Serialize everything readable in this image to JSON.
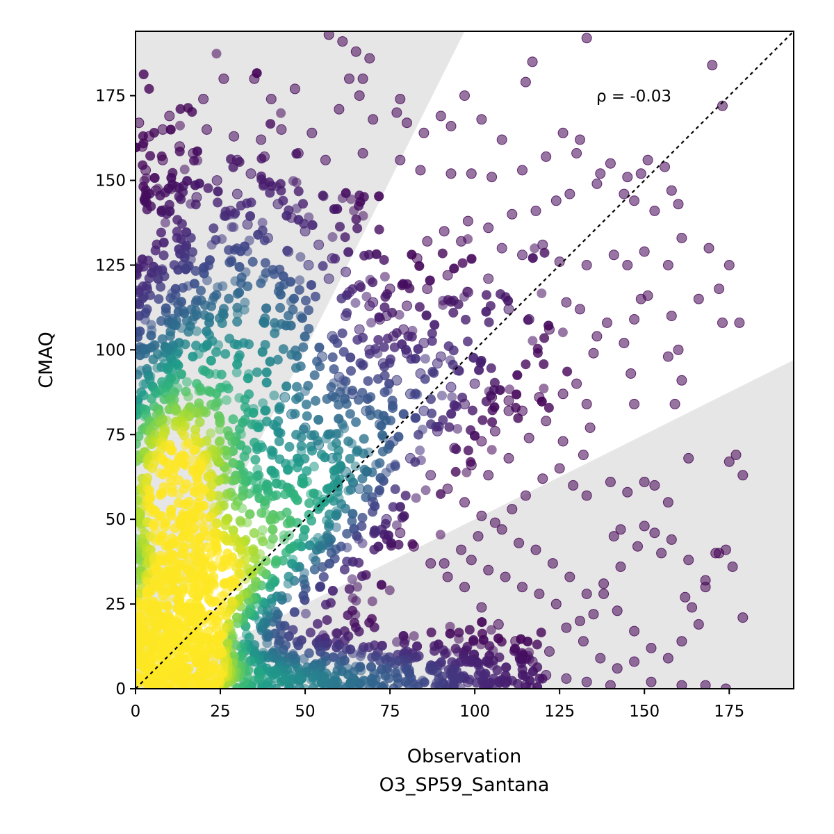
{
  "chart_data": {
    "type": "scatter",
    "title": "",
    "xlabel": "Observation",
    "xlabel_sub": "O3_SP59_Santana",
    "ylabel": "CMAQ",
    "xlim": [
      0,
      194
    ],
    "ylim": [
      0,
      194
    ],
    "xticks": [
      0,
      25,
      50,
      75,
      100,
      125,
      150,
      175
    ],
    "yticks": [
      0,
      25,
      50,
      75,
      100,
      125,
      150,
      175
    ],
    "annotation": "ρ = -0.03",
    "reference_line": "1:1 dotted diagonal",
    "shaded_regions": [
      {
        "name": "model-overestimate-zone",
        "boundary": "y = 2x",
        "color": "#e6e6e6"
      },
      {
        "name": "model-underestimate-zone",
        "boundary": "y = 0.5x",
        "color": "#e6e6e6"
      }
    ],
    "colormap": "viridis (point density, low = #440154, high = #fde725)",
    "marker_alpha": 0.55,
    "density_peak": {
      "x": 10,
      "y": 55
    },
    "grid": false,
    "series": [
      {
        "values_note": "individual sparse outlier points (x, y)",
        "points": [
          [
            57,
            193
          ],
          [
            61,
            191
          ],
          [
            65,
            188
          ],
          [
            69,
            186
          ],
          [
            97,
            175
          ],
          [
            117,
            185
          ],
          [
            115,
            179
          ],
          [
            133,
            192
          ],
          [
            170,
            184
          ],
          [
            173,
            172
          ],
          [
            63,
            180
          ],
          [
            67,
            180
          ],
          [
            26,
            180
          ],
          [
            35,
            180
          ],
          [
            20,
            174
          ],
          [
            40,
            174
          ],
          [
            47,
            177
          ],
          [
            66,
            175
          ],
          [
            78,
            174
          ],
          [
            1,
            167
          ],
          [
            10,
            169
          ],
          [
            4,
            163
          ],
          [
            8,
            165
          ],
          [
            13,
            160
          ],
          [
            21,
            165
          ],
          [
            29,
            163
          ],
          [
            37,
            162
          ],
          [
            43,
            165
          ],
          [
            52,
            164
          ],
          [
            60,
            171
          ],
          [
            70,
            168
          ],
          [
            77,
            170
          ],
          [
            80,
            167
          ],
          [
            85,
            164
          ],
          [
            90,
            169
          ],
          [
            93,
            166
          ],
          [
            102,
            168
          ],
          [
            108,
            162
          ],
          [
            126,
            164
          ],
          [
            131,
            162
          ],
          [
            130,
            158
          ],
          [
            121,
            157
          ],
          [
            114,
            153
          ],
          [
            105,
            151
          ],
          [
            99,
            152
          ],
          [
            93,
            152
          ],
          [
            84,
            153
          ],
          [
            78,
            156
          ],
          [
            67,
            158
          ],
          [
            56,
            156
          ],
          [
            48,
            158
          ],
          [
            38,
            157
          ],
          [
            30,
            156
          ],
          [
            17,
            158
          ],
          [
            8,
            156
          ],
          [
            3,
            153
          ],
          [
            2,
            160
          ],
          [
            140,
            155
          ],
          [
            137,
            152
          ],
          [
            145,
            151
          ],
          [
            151,
            156
          ],
          [
            149,
            152
          ],
          [
            156,
            154
          ],
          [
            158,
            147
          ],
          [
            160,
            143
          ],
          [
            153,
            141
          ],
          [
            147,
            144
          ],
          [
            144,
            146
          ],
          [
            136,
            149
          ],
          [
            128,
            146
          ],
          [
            124,
            144
          ],
          [
            118,
            141
          ],
          [
            111,
            140
          ],
          [
            104,
            136
          ],
          [
            98,
            138
          ],
          [
            91,
            135
          ],
          [
            86,
            132
          ],
          [
            83,
            127
          ],
          [
            96,
            132
          ],
          [
            108,
            130
          ],
          [
            114,
            128
          ],
          [
            120,
            131
          ],
          [
            125,
            126
          ],
          [
            133,
            125
          ],
          [
            141,
            128
          ],
          [
            145,
            125
          ],
          [
            150,
            129
          ],
          [
            157,
            125
          ],
          [
            161,
            133
          ],
          [
            169,
            130
          ],
          [
            151,
            116
          ],
          [
            158,
            110
          ],
          [
            166,
            115
          ],
          [
            172,
            118
          ],
          [
            175,
            125
          ],
          [
            178,
            108
          ],
          [
            173,
            108
          ],
          [
            157,
            98
          ],
          [
            160,
            100
          ],
          [
            161,
            91
          ],
          [
            163,
            68
          ],
          [
            159,
            84
          ],
          [
            146,
            93
          ],
          [
            147,
            84
          ],
          [
            139,
            108
          ],
          [
            144,
            102
          ],
          [
            147,
            109
          ],
          [
            149,
            115
          ],
          [
            136,
            104
          ],
          [
            131,
            112
          ],
          [
            135,
            99
          ],
          [
            130,
            90
          ],
          [
            126,
            87
          ],
          [
            119,
            86
          ],
          [
            114,
            82
          ],
          [
            110,
            85
          ],
          [
            106,
            76
          ],
          [
            102,
            73
          ],
          [
            97,
            84
          ],
          [
            93,
            89
          ],
          [
            89,
            96
          ],
          [
            84,
            93
          ],
          [
            80,
            99
          ],
          [
            76,
            104
          ],
          [
            72,
            109
          ],
          [
            70,
            114
          ],
          [
            75,
            118
          ],
          [
            80,
            113
          ],
          [
            86,
            118
          ],
          [
            92,
            122
          ],
          [
            98,
            117
          ],
          [
            104,
            121
          ],
          [
            110,
            112
          ],
          [
            116,
            109
          ],
          [
            122,
            106
          ],
          [
            127,
            114
          ],
          [
            133,
            84
          ],
          [
            134,
            77
          ],
          [
            132,
            69
          ],
          [
            126,
            73
          ],
          [
            121,
            79
          ],
          [
            116,
            74
          ],
          [
            110,
            68
          ],
          [
            104,
            63
          ],
          [
            99,
            66
          ],
          [
            94,
            71
          ],
          [
            89,
            76
          ],
          [
            85,
            82
          ],
          [
            81,
            87
          ],
          [
            77,
            91
          ],
          [
            73,
            96
          ],
          [
            69,
            100
          ],
          [
            66,
            106
          ],
          [
            62,
            110
          ],
          [
            58,
            104
          ],
          [
            55,
            98
          ],
          [
            60,
            92
          ],
          [
            64,
            87
          ],
          [
            68,
            82
          ],
          [
            72,
            78
          ],
          [
            76,
            73
          ],
          [
            81,
            68
          ],
          [
            87,
            63
          ],
          [
            92,
            59
          ],
          [
            97,
            55
          ],
          [
            102,
            51
          ],
          [
            108,
            47
          ],
          [
            113,
            43
          ],
          [
            118,
            41
          ],
          [
            123,
            37
          ],
          [
            128,
            33
          ],
          [
            133,
            28
          ],
          [
            138,
            31
          ],
          [
            143,
            36
          ],
          [
            148,
            42
          ],
          [
            153,
            46
          ],
          [
            158,
            44
          ],
          [
            163,
            38
          ],
          [
            168,
            32
          ],
          [
            172,
            40
          ],
          [
            176,
            36
          ],
          [
            179,
            21
          ],
          [
            166,
            19
          ],
          [
            161,
            14
          ],
          [
            157,
            9
          ],
          [
            152,
            12
          ],
          [
            147,
            8
          ],
          [
            142,
            6
          ],
          [
            137,
            9
          ],
          [
            132,
            14
          ],
          [
            127,
            18
          ],
          [
            122,
            11
          ],
          [
            117,
            8
          ],
          [
            112,
            14
          ],
          [
            107,
            19
          ],
          [
            102,
            24
          ],
          [
            97,
            30
          ],
          [
            92,
            33
          ],
          [
            87,
            37
          ],
          [
            82,
            42
          ],
          [
            78,
            46
          ],
          [
            74,
            50
          ],
          [
            70,
            55
          ],
          [
            66,
            59
          ],
          [
            62,
            64
          ],
          [
            58,
            68
          ],
          [
            54,
            72
          ],
          [
            50,
            77
          ],
          [
            46,
            81
          ],
          [
            44,
            86
          ],
          [
            140,
            61
          ],
          [
            145,
            58
          ],
          [
            150,
            61
          ],
          [
            153,
            60
          ],
          [
            157,
            55
          ],
          [
            150,
            48
          ],
          [
            155,
            40
          ],
          [
            162,
            27
          ],
          [
            164,
            24
          ],
          [
            168,
            30
          ],
          [
            174,
            41
          ],
          [
            179,
            63
          ],
          [
            177,
            69
          ],
          [
            175,
            67
          ],
          [
            171,
            40
          ],
          [
            147,
            17
          ],
          [
            142,
            23
          ],
          [
            138,
            28
          ],
          [
            141,
            45
          ],
          [
            143,
            47
          ],
          [
            133,
            57
          ],
          [
            129,
            60
          ],
          [
            125,
            65
          ],
          [
            120,
            62
          ],
          [
            115,
            57
          ],
          [
            111,
            53
          ],
          [
            106,
            49
          ],
          [
            101,
            45
          ],
          [
            96,
            41
          ],
          [
            91,
            37
          ],
          [
            135,
            22
          ],
          [
            131,
            20
          ],
          [
            124,
            25
          ],
          [
            119,
            28
          ],
          [
            114,
            30
          ],
          [
            109,
            33
          ],
          [
            104,
            35
          ],
          [
            99,
            38
          ],
          [
            121,
            4
          ],
          [
            127,
            3
          ],
          [
            133,
            2
          ],
          [
            140,
            1
          ],
          [
            152,
            2
          ],
          [
            161,
            1
          ],
          [
            168,
            1
          ],
          [
            174,
            0
          ],
          [
            115,
            1
          ],
          [
            109,
            2
          ],
          [
            103,
            1
          ],
          [
            98,
            2
          ],
          [
            30,
            146
          ],
          [
            34,
            152
          ],
          [
            38,
            149
          ],
          [
            42,
            143
          ],
          [
            46,
            139
          ],
          [
            50,
            135
          ],
          [
            54,
            131
          ],
          [
            58,
            127
          ],
          [
            62,
            123
          ],
          [
            66,
            119
          ],
          [
            24,
            150
          ],
          [
            18,
            145
          ],
          [
            12,
            148
          ],
          [
            6,
            147
          ],
          [
            28,
            141
          ],
          [
            33,
            137
          ],
          [
            39,
            133
          ],
          [
            45,
            129
          ],
          [
            51,
            125
          ],
          [
            57,
            121
          ],
          [
            63,
            117
          ],
          [
            69,
            113
          ],
          [
            74,
            110
          ],
          [
            79,
            106
          ],
          [
            85,
            102
          ],
          [
            90,
            98
          ],
          [
            95,
            94
          ],
          [
            100,
            90
          ],
          [
            105,
            86
          ],
          [
            110,
            82
          ]
        ]
      }
    ]
  }
}
